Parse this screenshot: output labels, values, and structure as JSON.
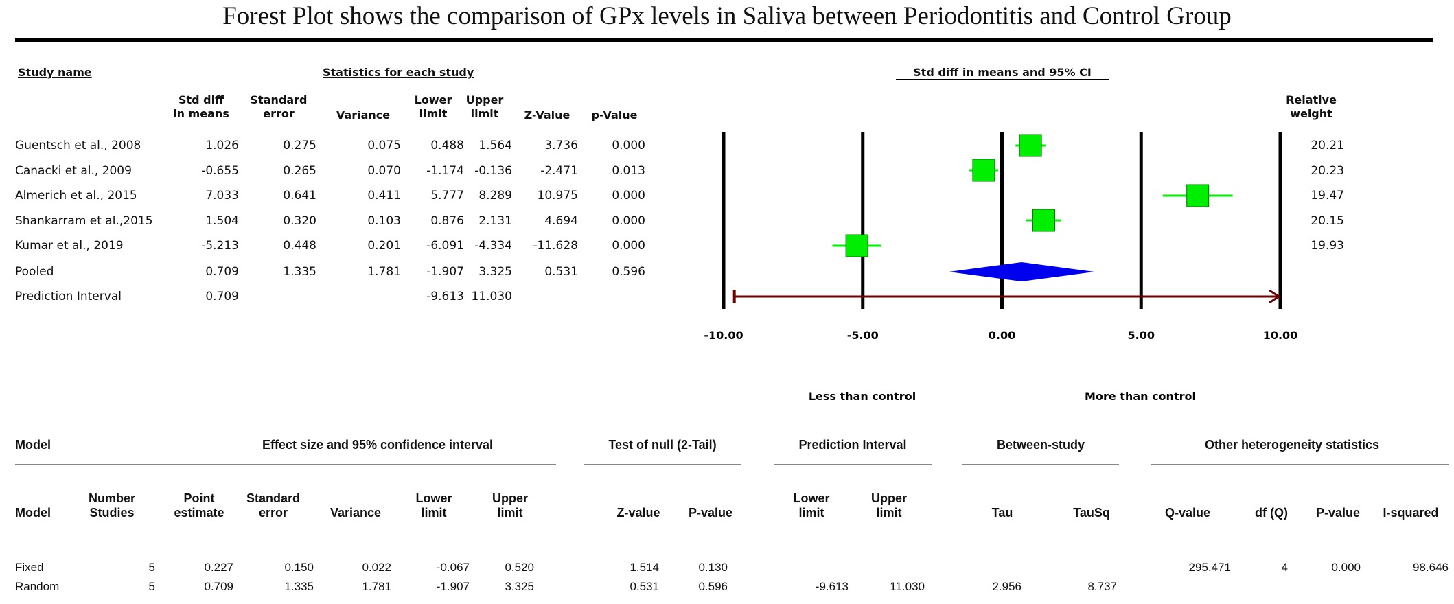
{
  "title": "Forest Plot shows the comparison of GPx levels in Saliva between Periodontitis and Control Group",
  "top_table": {
    "study_name_header": "Study name",
    "stats_header": "Statistics for each study",
    "ci_header": "Std diff in means and 95% CI",
    "columns": [
      "Std diff\nin means",
      "Standard\nerror",
      "Variance",
      "Lower\nlimit",
      "Upper\nlimit",
      "Z-Value",
      "p-Value"
    ],
    "weight_header": "Relative\nweight",
    "rows": [
      {
        "name": "Guentsch et al., 2008",
        "cells": [
          "1.026",
          "0.275",
          "0.075",
          "0.488",
          "1.564",
          "3.736",
          "0.000"
        ],
        "weight": "20.21"
      },
      {
        "name": "Canacki et al., 2009",
        "cells": [
          "-0.655",
          "0.265",
          "0.070",
          "-1.174",
          "-0.136",
          "-2.471",
          "0.013"
        ],
        "weight": "20.23"
      },
      {
        "name": "Almerich et al., 2015",
        "cells": [
          "7.033",
          "0.641",
          "0.411",
          "5.777",
          "8.289",
          "10.975",
          "0.000"
        ],
        "weight": "19.47"
      },
      {
        "name": "Shankarram et al.,2015",
        "cells": [
          "1.504",
          "0.320",
          "0.103",
          "0.876",
          "2.131",
          "4.694",
          "0.000"
        ],
        "weight": "20.15"
      },
      {
        "name": "Kumar et al., 2019",
        "cells": [
          "-5.213",
          "0.448",
          "0.201",
          "-6.091",
          "-4.334",
          "-11.628",
          "0.000"
        ],
        "weight": "19.93"
      },
      {
        "name": "Pooled",
        "cells": [
          "0.709",
          "1.335",
          "1.781",
          "-1.907",
          "3.325",
          "0.531",
          "0.596"
        ],
        "weight": ""
      },
      {
        "name": "Prediction Interval",
        "cells": [
          "0.709",
          "",
          "",
          "-9.613",
          "11.030",
          "",
          ""
        ],
        "weight": ""
      }
    ]
  },
  "axis": {
    "tick_labels": [
      "-10.00",
      "-5.00",
      "0.00",
      "5.00",
      "10.00"
    ],
    "left_label": "Less than control",
    "right_label": "More than control"
  },
  "chart_data": {
    "type": "forest",
    "title": "Std diff in means and 95% CI",
    "xlim": [
      -10,
      10
    ],
    "xticks": [
      -10,
      -5,
      0,
      5,
      10
    ],
    "studies": [
      {
        "name": "Guentsch et al., 2008",
        "estimate": 1.026,
        "lower": 0.488,
        "upper": 1.564,
        "weight": 20.21
      },
      {
        "name": "Canacki et al., 2009",
        "estimate": -0.655,
        "lower": -1.174,
        "upper": -0.136,
        "weight": 20.23
      },
      {
        "name": "Almerich et al., 2015",
        "estimate": 7.033,
        "lower": 5.777,
        "upper": 8.289,
        "weight": 19.47
      },
      {
        "name": "Shankarram et al.,2015",
        "estimate": 1.504,
        "lower": 0.876,
        "upper": 2.131,
        "weight": 20.15
      },
      {
        "name": "Kumar et al., 2019",
        "estimate": -5.213,
        "lower": -6.091,
        "upper": -4.334,
        "weight": 19.93
      }
    ],
    "pooled": {
      "estimate": 0.709,
      "lower": -1.907,
      "upper": 3.325
    },
    "prediction_interval": {
      "lower": -9.613,
      "upper": 11.03
    },
    "colors": {
      "study": "#00ee00",
      "pooled": "#0000ee",
      "interval": "#6b0000"
    }
  },
  "bottom_table": {
    "group_headers": {
      "model": "Model",
      "effect": "Effect size and 95% confidence interval",
      "null": "Test of null (2-Tail)",
      "pi": "Prediction Interval",
      "between": "Between-study",
      "other": "Other heterogeneity statistics"
    },
    "columns": [
      "Model",
      "Number\nStudies",
      "Point\nestimate",
      "Standard\nerror",
      "Variance",
      "Lower\nlimit",
      "Upper\nlimit",
      "Z-value",
      "P-value",
      "Lower\nlimit",
      "Upper\nlimit",
      "Tau",
      "TauSq",
      "Q-value",
      "df (Q)",
      "P-value",
      "I-squared"
    ],
    "rows": [
      [
        "Fixed",
        "5",
        "0.227",
        "0.150",
        "0.022",
        "-0.067",
        "0.520",
        "1.514",
        "0.130",
        "",
        "",
        "",
        "",
        "295.471",
        "4",
        "0.000",
        "98.646"
      ],
      [
        "Random",
        "5",
        "0.709",
        "1.335",
        "1.781",
        "-1.907",
        "3.325",
        "0.531",
        "0.596",
        "-9.613",
        "11.030",
        "2.956",
        "8.737",
        "",
        "",
        "",
        ""
      ]
    ]
  }
}
